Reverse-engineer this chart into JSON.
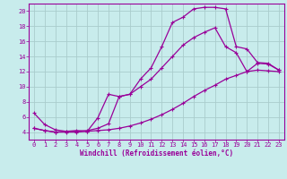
{
  "xlabel": "Windchill (Refroidissement éolien,°C)",
  "bg_color": "#c8ecec",
  "line_color": "#990099",
  "grid_color": "#aacccc",
  "xlim": [
    -0.5,
    23.5
  ],
  "ylim": [
    3,
    21
  ],
  "xticks": [
    0,
    1,
    2,
    3,
    4,
    5,
    6,
    7,
    8,
    9,
    10,
    11,
    12,
    13,
    14,
    15,
    16,
    17,
    18,
    19,
    20,
    21,
    22,
    23
  ],
  "yticks": [
    4,
    6,
    8,
    10,
    12,
    14,
    16,
    18,
    20
  ],
  "curve1_x": [
    0,
    1,
    2,
    3,
    4,
    5,
    6,
    7,
    8,
    9,
    10,
    11,
    12,
    13,
    14,
    15,
    16,
    17,
    18,
    19,
    20,
    21,
    22,
    23
  ],
  "curve1_y": [
    6.5,
    5.0,
    4.3,
    4.1,
    4.2,
    4.1,
    5.9,
    9.0,
    8.7,
    9.0,
    11.0,
    12.5,
    15.3,
    18.5,
    19.2,
    20.3,
    20.5,
    20.5,
    20.3,
    15.3,
    15.0,
    13.2,
    13.1,
    12.2
  ],
  "curve2_x": [
    0,
    1,
    2,
    3,
    4,
    5,
    6,
    7,
    8,
    9,
    10,
    11,
    12,
    13,
    14,
    15,
    16,
    17,
    18,
    19,
    20,
    21,
    22,
    23
  ],
  "curve2_y": [
    4.5,
    4.2,
    4.0,
    4.1,
    4.1,
    4.2,
    4.5,
    5.1,
    8.7,
    9.0,
    10.0,
    11.0,
    12.5,
    14.0,
    15.5,
    16.5,
    17.2,
    17.8,
    15.3,
    14.5,
    12.0,
    13.1,
    13.0,
    12.2
  ],
  "curve3_x": [
    0,
    1,
    2,
    3,
    4,
    5,
    6,
    7,
    8,
    9,
    10,
    11,
    12,
    13,
    14,
    15,
    16,
    17,
    18,
    19,
    20,
    21,
    22,
    23
  ],
  "curve3_y": [
    4.5,
    4.2,
    4.0,
    4.0,
    4.0,
    4.1,
    4.2,
    4.3,
    4.5,
    4.8,
    5.2,
    5.7,
    6.3,
    7.0,
    7.8,
    8.7,
    9.5,
    10.2,
    11.0,
    11.5,
    12.0,
    12.2,
    12.1,
    12.0
  ]
}
